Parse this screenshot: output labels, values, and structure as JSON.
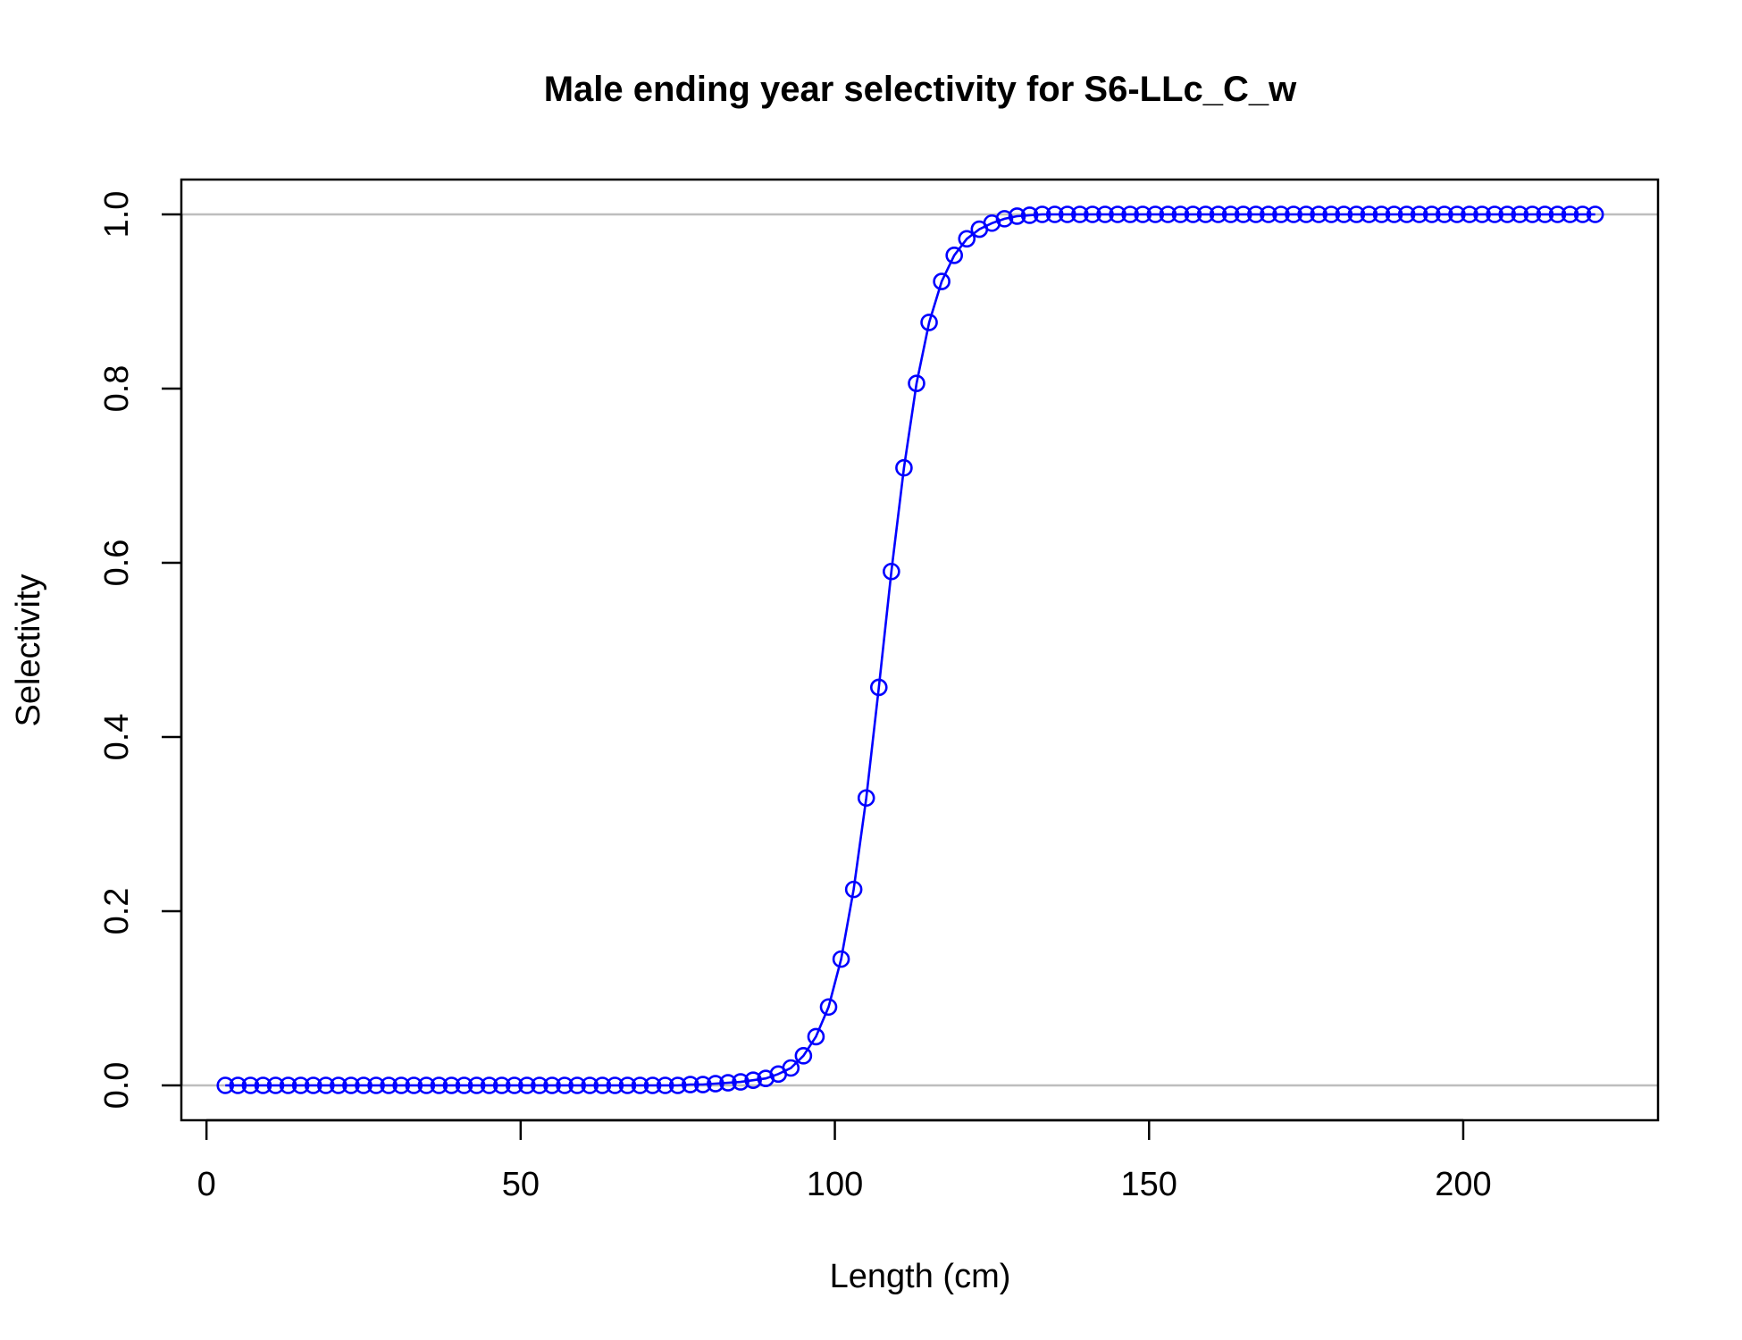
{
  "chart_data": {
    "type": "line",
    "title": "Male ending year selectivity for S6-LLc_C_w",
    "xlabel": "Length (cm)",
    "ylabel": "Selectivity",
    "xlim": [
      -4,
      231
    ],
    "ylim": [
      -0.04,
      1.04
    ],
    "xticks": [
      "0",
      "50",
      "100",
      "150",
      "200"
    ],
    "yticks": [
      "0.0",
      "0.2",
      "0.4",
      "0.6",
      "0.8",
      "1.0"
    ],
    "reference_lines_y": [
      0,
      1
    ],
    "grid": false,
    "legend": "none",
    "series": [
      {
        "markers": "open-circle",
        "x": [
          3,
          5,
          7,
          9,
          11,
          13,
          15,
          17,
          19,
          21,
          23,
          25,
          27,
          29,
          31,
          33,
          35,
          37,
          39,
          41,
          43,
          45,
          47,
          49,
          51,
          53,
          55,
          57,
          59,
          61,
          63,
          65,
          67,
          69,
          71,
          73,
          75,
          77,
          79,
          81,
          83,
          85,
          87,
          89,
          91,
          93,
          95,
          97,
          99,
          101,
          103,
          105,
          107,
          109,
          111,
          113,
          115,
          117,
          119,
          121,
          123,
          125,
          127,
          129,
          131,
          133,
          135,
          137,
          139,
          141,
          143,
          145,
          147,
          149,
          151,
          153,
          155,
          157,
          159,
          161,
          163,
          165,
          167,
          169,
          171,
          173,
          175,
          177,
          179,
          181,
          183,
          185,
          187,
          189,
          191,
          193,
          195,
          197,
          199,
          201,
          203,
          205,
          207,
          209,
          211,
          213,
          215,
          217,
          219,
          221
        ],
        "y": [
          0,
          0,
          0,
          0,
          0,
          0,
          0,
          0,
          0,
          0,
          0,
          0,
          0,
          0,
          0,
          0,
          0,
          0,
          0,
          0,
          0,
          0,
          0,
          0,
          0,
          0,
          0,
          0,
          0,
          0,
          0,
          0,
          0,
          0,
          0,
          0,
          0,
          0.001,
          0.001,
          0.002,
          0.003,
          0.004,
          0.006,
          0.008,
          0.013,
          0.02,
          0.034,
          0.056,
          0.09,
          0.145,
          0.225,
          0.33,
          0.457,
          0.59,
          0.709,
          0.806,
          0.876,
          0.923,
          0.953,
          0.972,
          0.983,
          0.99,
          0.995,
          0.998,
          0.999,
          1,
          1,
          1,
          1,
          1,
          1,
          1,
          1,
          1,
          1,
          1,
          1,
          1,
          1,
          1,
          1,
          1,
          1,
          1,
          1,
          1,
          1,
          1,
          1,
          1,
          1,
          1,
          1,
          1,
          1,
          1,
          1,
          1,
          1,
          1,
          1,
          1,
          1,
          1,
          1,
          1,
          1,
          1,
          1,
          1
        ]
      }
    ]
  },
  "colors": {
    "series": "#0000ff",
    "reference_line": "#bebebe",
    "axis": "#000000"
  }
}
